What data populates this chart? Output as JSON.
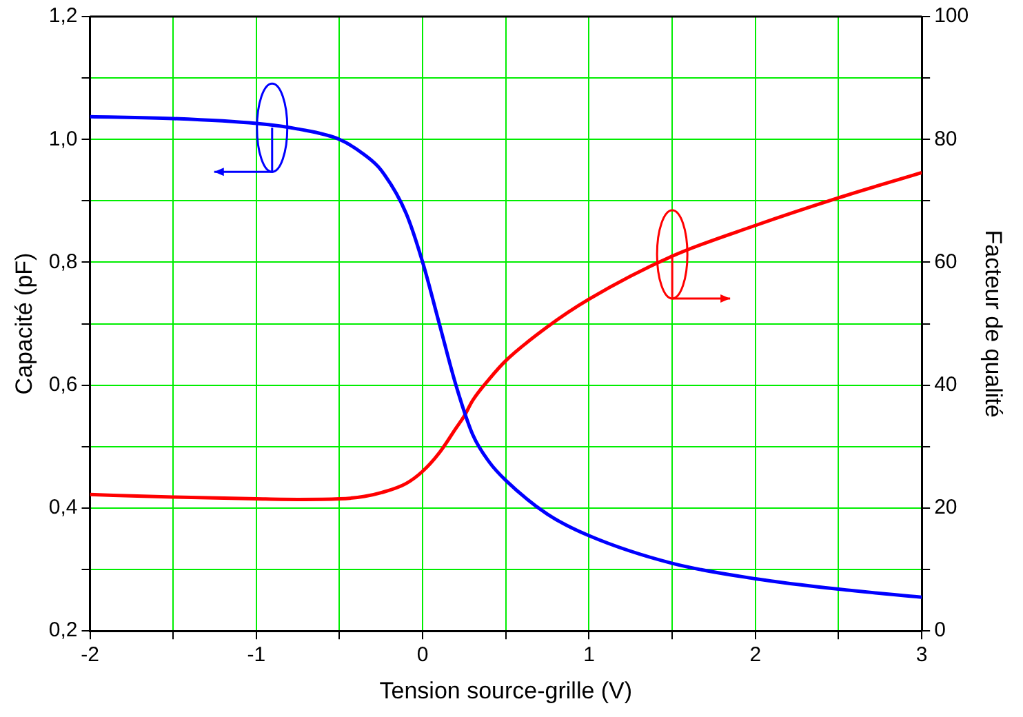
{
  "chart_data": {
    "type": "line",
    "xlabel": "Tension source-grille (V)",
    "ylabel": "Capacité (pF)",
    "y2label": "Facteur de qualité",
    "xlim": [
      -2,
      3
    ],
    "xticks": [
      -2,
      {
        "value": -1.5,
        "label": null
      },
      -1,
      {
        "value": -0.5,
        "label": null
      },
      0,
      {
        "value": 0.5,
        "label": null
      },
      1,
      {
        "value": 1.5,
        "label": null
      },
      2,
      {
        "value": 2.5,
        "label": null
      },
      3
    ],
    "ylim": [
      0.2,
      1.2
    ],
    "yticks": [
      {
        "value": 0.2,
        "label": "0,2"
      },
      {
        "value": 0.3,
        "label": null
      },
      {
        "value": 0.4,
        "label": "0,4"
      },
      {
        "value": 0.5,
        "label": null
      },
      {
        "value": 0.6,
        "label": "0,6"
      },
      {
        "value": 0.7,
        "label": null
      },
      {
        "value": 0.8,
        "label": "0,8"
      },
      {
        "value": 0.9,
        "label": null
      },
      {
        "value": 1.0,
        "label": "1,0"
      },
      {
        "value": 1.1,
        "label": null
      },
      {
        "value": 1.2,
        "label": "1,2"
      }
    ],
    "y2lim": [
      0,
      100
    ],
    "y2ticks": [
      0,
      {
        "value": 10,
        "label": null
      },
      20,
      {
        "value": 30,
        "label": null
      },
      40,
      {
        "value": 50,
        "label": null
      },
      60,
      {
        "value": 70,
        "label": null
      },
      80,
      {
        "value": 90,
        "label": null
      },
      100
    ],
    "grid": true,
    "legend": false,
    "marker": "none",
    "line_style": "solid",
    "series": [
      {
        "color": "#0000ff",
        "axis": "y",
        "x": [
          -2,
          -1.5,
          -1,
          -0.75,
          -0.5,
          -0.35,
          -0.25,
          -0.1,
          0,
          0.1,
          0.2,
          0.3,
          0.4,
          0.5,
          0.75,
          1,
          1.5,
          2,
          2.5,
          3
        ],
        "values": [
          1.037,
          1.034,
          1.026,
          1.017,
          1.0,
          0.975,
          0.95,
          0.88,
          0.8,
          0.7,
          0.6,
          0.52,
          0.475,
          0.445,
          0.39,
          0.355,
          0.31,
          0.285,
          0.268,
          0.255
        ]
      },
      {
        "color": "#ff0000",
        "axis": "y2",
        "x": [
          -2,
          -1.5,
          -1,
          -0.75,
          -0.5,
          -0.35,
          -0.25,
          -0.1,
          0,
          0.1,
          0.2,
          0.25,
          0.3,
          0.4,
          0.5,
          0.75,
          1,
          1.5,
          2,
          2.5,
          3
        ],
        "values": [
          22.2,
          21.8,
          21.5,
          21.4,
          21.5,
          21.9,
          22.5,
          24,
          26,
          29,
          33,
          35,
          37.5,
          41,
          44,
          49.5,
          54,
          61,
          66,
          70.5,
          74.6
        ]
      }
    ]
  }
}
